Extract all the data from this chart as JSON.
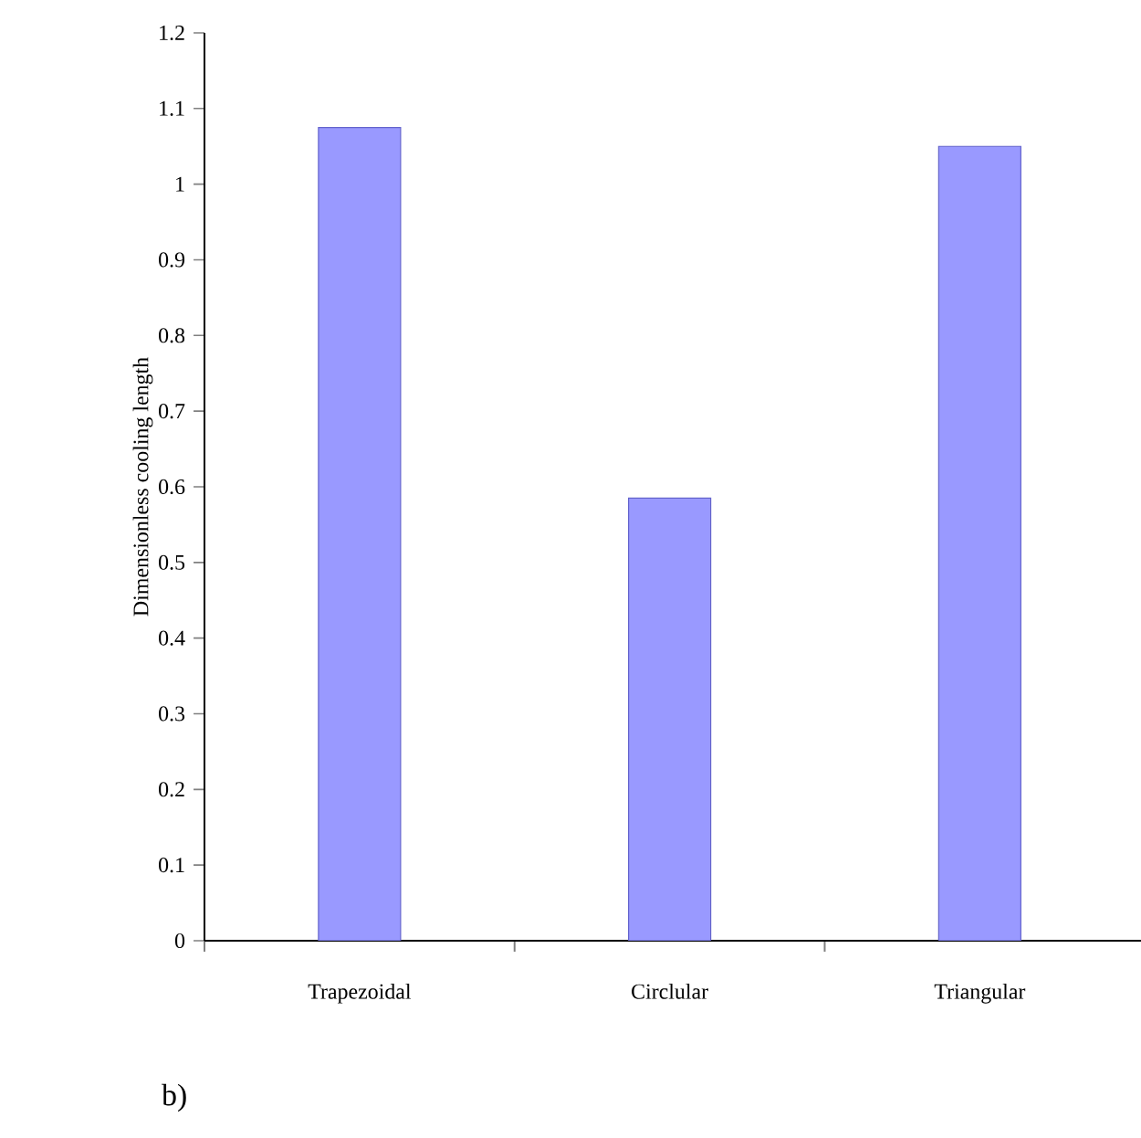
{
  "chart_data": {
    "type": "bar",
    "ylabel": "Dimensionless cooling length",
    "categories": [
      "Trapezoidal",
      "Circlular",
      "Triangular"
    ],
    "values": [
      1.075,
      0.585,
      1.05
    ],
    "color": "#9999ff",
    "ylim": [
      0,
      1.2
    ],
    "yticks": [
      0,
      0.1,
      0.2,
      0.3,
      0.4,
      0.5,
      0.6,
      0.7,
      0.8,
      0.9,
      1,
      1.1,
      1.2
    ],
    "grid": false,
    "annotations": [
      "b)"
    ]
  }
}
